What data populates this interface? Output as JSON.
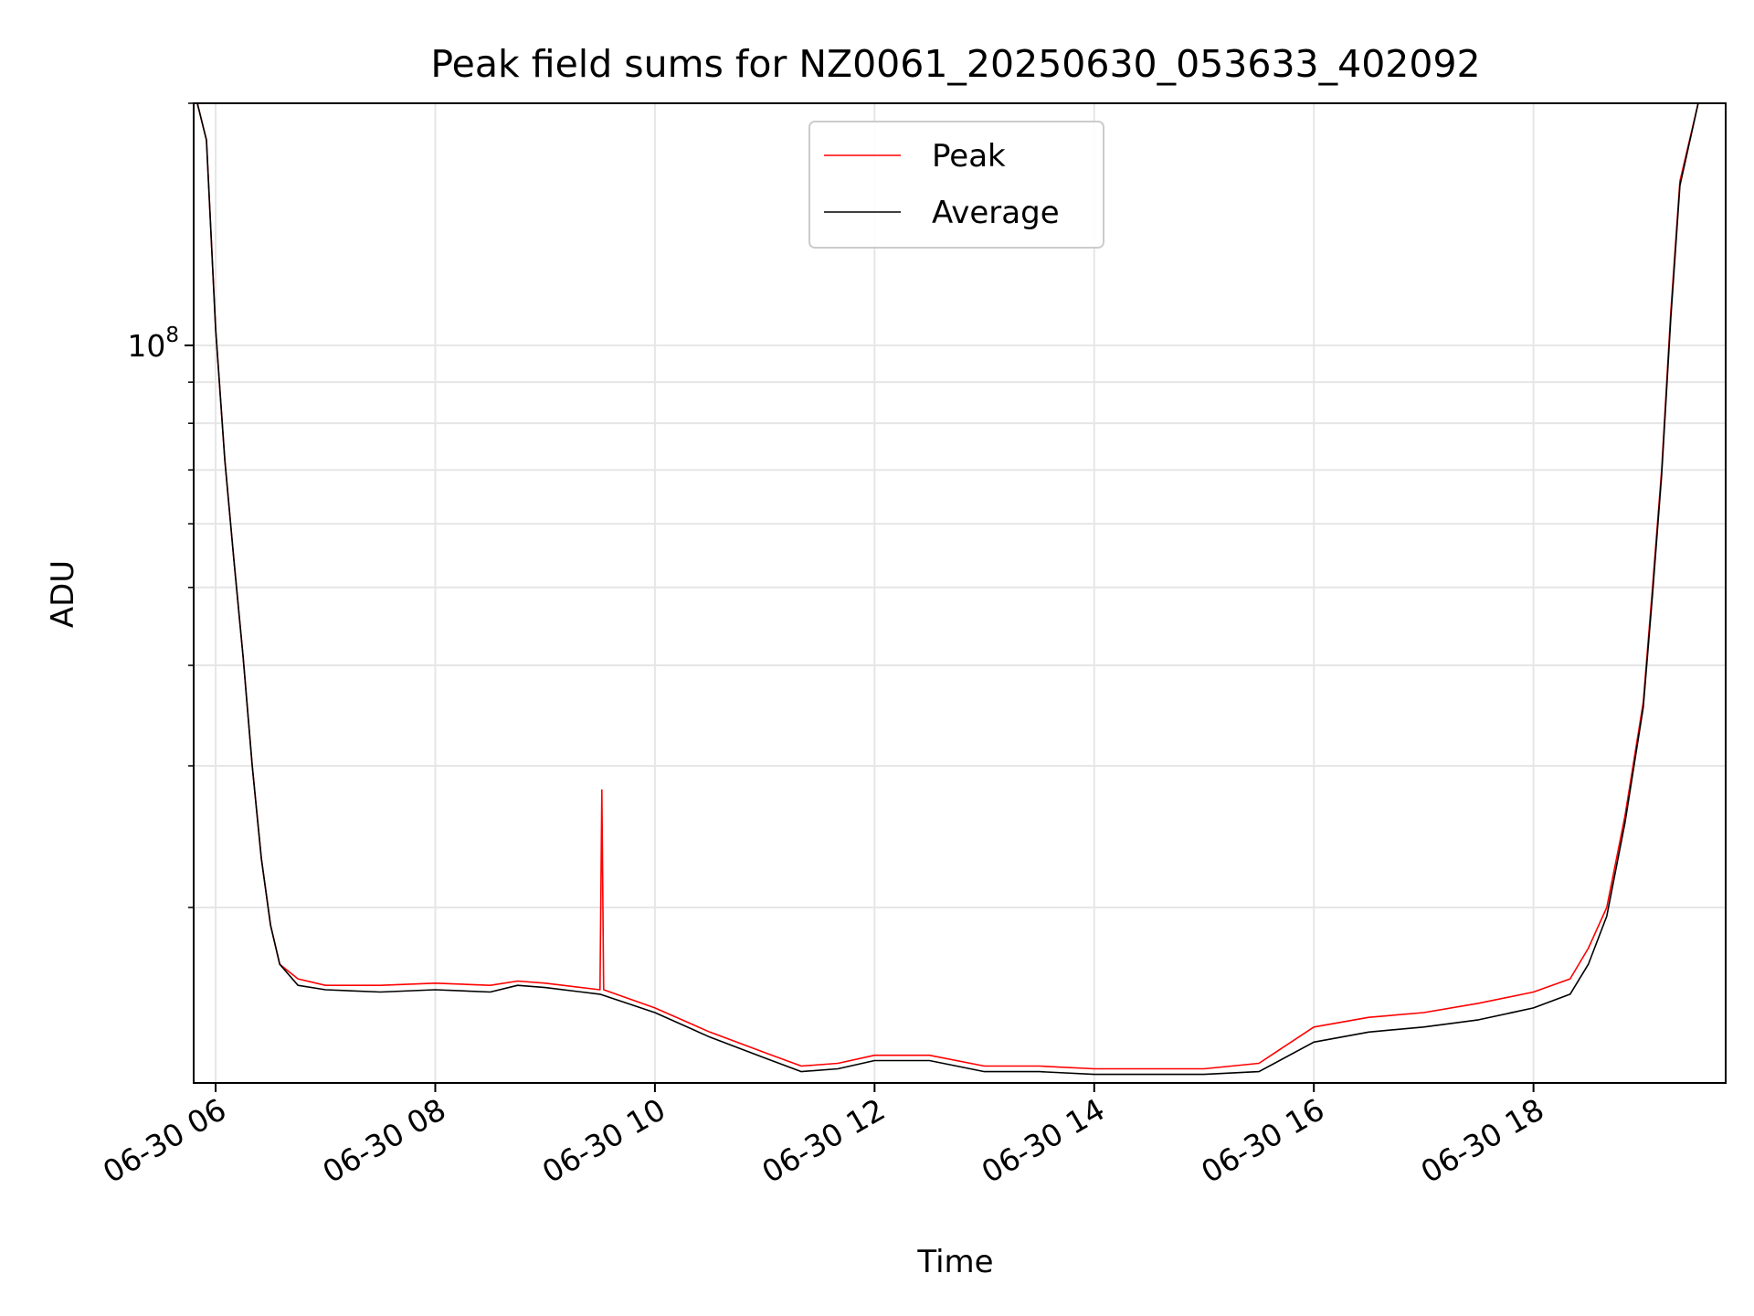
{
  "chart_data": {
    "type": "line",
    "title": "Peak field sums for NZ0061_20250630_053633_402092",
    "xlabel": "Time",
    "ylabel": "ADU",
    "x_axis": {
      "kind": "datetime",
      "range": [
        "2025-06-30 05:48",
        "2025-06-30 19:45"
      ],
      "ticks": [
        {
          "value": "2025-06-30 06:00",
          "label": "06-30 06"
        },
        {
          "value": "2025-06-30 08:00",
          "label": "06-30 08"
        },
        {
          "value": "2025-06-30 10:00",
          "label": "06-30 10"
        },
        {
          "value": "2025-06-30 12:00",
          "label": "06-30 12"
        },
        {
          "value": "2025-06-30 14:00",
          "label": "06-30 14"
        },
        {
          "value": "2025-06-30 16:00",
          "label": "06-30 16"
        },
        {
          "value": "2025-06-30 18:00",
          "label": "06-30 18"
        }
      ]
    },
    "y_axis": {
      "scale": "log",
      "range": [
        12100000,
        200000000
      ],
      "major_ticks": [
        {
          "value": 100000000,
          "base": "10",
          "exp": "8"
        }
      ],
      "minor_ticks": [
        20000000,
        30000000,
        40000000,
        50000000,
        60000000,
        70000000,
        80000000,
        90000000,
        200000000
      ]
    },
    "grid": true,
    "legend": {
      "placement": "upper center"
    },
    "series": [
      {
        "name": "Peak",
        "color": "#ff0000",
        "x": [
          "2025-06-30 05:50",
          "2025-06-30 05:55",
          "2025-06-30 06:00",
          "2025-06-30 06:05",
          "2025-06-30 06:10",
          "2025-06-30 06:15",
          "2025-06-30 06:20",
          "2025-06-30 06:25",
          "2025-06-30 06:30",
          "2025-06-30 06:35",
          "2025-06-30 06:45",
          "2025-06-30 07:00",
          "2025-06-30 07:30",
          "2025-06-30 08:00",
          "2025-06-30 08:30",
          "2025-06-30 08:45",
          "2025-06-30 09:00",
          "2025-06-30 09:30",
          "2025-06-30 09:31",
          "2025-06-30 09:32",
          "2025-06-30 10:00",
          "2025-06-30 10:30",
          "2025-06-30 11:00",
          "2025-06-30 11:20",
          "2025-06-30 11:40",
          "2025-06-30 12:00",
          "2025-06-30 12:30",
          "2025-06-30 13:00",
          "2025-06-30 13:30",
          "2025-06-30 14:00",
          "2025-06-30 14:30",
          "2025-06-30 15:00",
          "2025-06-30 15:30",
          "2025-06-30 16:00",
          "2025-06-30 16:30",
          "2025-06-30 17:00",
          "2025-06-30 17:30",
          "2025-06-30 18:00",
          "2025-06-30 18:20",
          "2025-06-30 18:30",
          "2025-06-30 18:40",
          "2025-06-30 18:50",
          "2025-06-30 19:00",
          "2025-06-30 19:05",
          "2025-06-30 19:10",
          "2025-06-30 19:15",
          "2025-06-30 19:20",
          "2025-06-30 19:30"
        ],
        "y": [
          200000000,
          180000000,
          105000000,
          72000000,
          54000000,
          41000000,
          30000000,
          23000000,
          19000000,
          17000000,
          16300000,
          16000000,
          16000000,
          16100000,
          16000000,
          16200000,
          16100000,
          15800000,
          28000000,
          15800000,
          15000000,
          14000000,
          13200000,
          12700000,
          12800000,
          13100000,
          13100000,
          12700000,
          12700000,
          12600000,
          12600000,
          12600000,
          12800000,
          14200000,
          14600000,
          14800000,
          15200000,
          15700000,
          16300000,
          17800000,
          20000000,
          26000000,
          36000000,
          50000000,
          70000000,
          110000000,
          160000000,
          200000000
        ]
      },
      {
        "name": "Average",
        "color": "#000000",
        "x": [
          "2025-06-30 05:50",
          "2025-06-30 05:55",
          "2025-06-30 06:00",
          "2025-06-30 06:05",
          "2025-06-30 06:10",
          "2025-06-30 06:15",
          "2025-06-30 06:20",
          "2025-06-30 06:25",
          "2025-06-30 06:30",
          "2025-06-30 06:35",
          "2025-06-30 06:45",
          "2025-06-30 07:00",
          "2025-06-30 07:30",
          "2025-06-30 08:00",
          "2025-06-30 08:30",
          "2025-06-30 08:45",
          "2025-06-30 09:00",
          "2025-06-30 09:30",
          "2025-06-30 10:00",
          "2025-06-30 10:30",
          "2025-06-30 11:00",
          "2025-06-30 11:20",
          "2025-06-30 11:40",
          "2025-06-30 12:00",
          "2025-06-30 12:30",
          "2025-06-30 13:00",
          "2025-06-30 13:30",
          "2025-06-30 14:00",
          "2025-06-30 14:30",
          "2025-06-30 15:00",
          "2025-06-30 15:30",
          "2025-06-30 16:00",
          "2025-06-30 16:30",
          "2025-06-30 17:00",
          "2025-06-30 17:30",
          "2025-06-30 18:00",
          "2025-06-30 18:20",
          "2025-06-30 18:30",
          "2025-06-30 18:40",
          "2025-06-30 18:50",
          "2025-06-30 19:00",
          "2025-06-30 19:05",
          "2025-06-30 19:10",
          "2025-06-30 19:15",
          "2025-06-30 19:20",
          "2025-06-30 19:30"
        ],
        "y": [
          200000000,
          180000000,
          105000000,
          72000000,
          54000000,
          41000000,
          30000000,
          23000000,
          19000000,
          17000000,
          16000000,
          15800000,
          15700000,
          15800000,
          15700000,
          16000000,
          15900000,
          15600000,
          14800000,
          13800000,
          13000000,
          12500000,
          12600000,
          12900000,
          12900000,
          12500000,
          12500000,
          12400000,
          12400000,
          12400000,
          12500000,
          13600000,
          14000000,
          14200000,
          14500000,
          15000000,
          15600000,
          17000000,
          19500000,
          25500000,
          35500000,
          49000000,
          69000000,
          108000000,
          158000000,
          200000000
        ]
      }
    ]
  }
}
